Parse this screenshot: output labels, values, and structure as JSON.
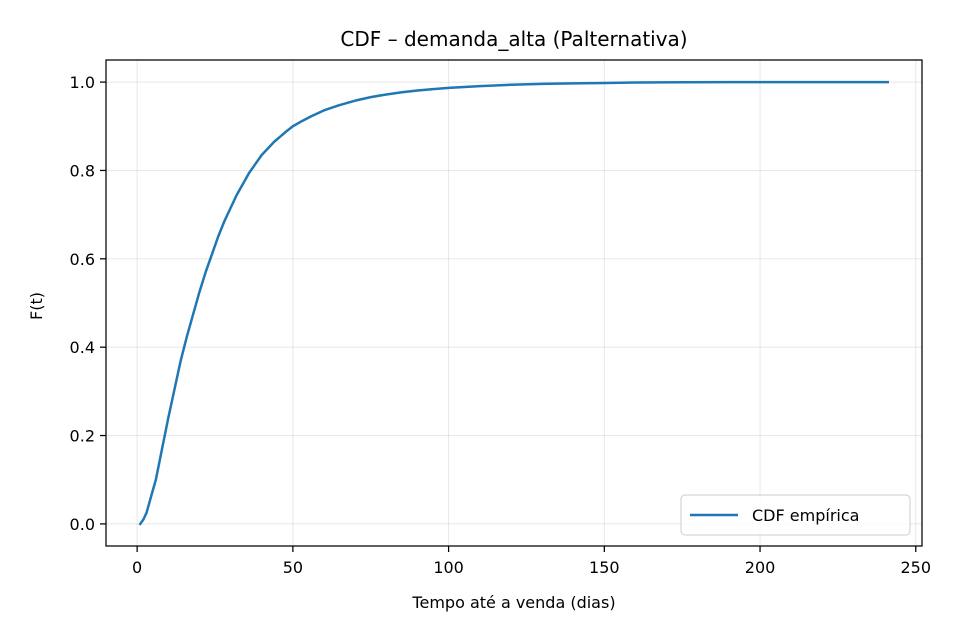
{
  "chart_data": {
    "type": "line",
    "title": "CDF – demanda_alta (Palternativa)",
    "xlabel": "Tempo até a venda (dias)",
    "ylabel": "F(t)",
    "xlim": [
      -10,
      252
    ],
    "ylim": [
      -0.05,
      1.05
    ],
    "xticks": [
      0,
      50,
      100,
      150,
      200,
      250
    ],
    "yticks": [
      0.0,
      0.2,
      0.4,
      0.6,
      0.8,
      1.0
    ],
    "grid": true,
    "legend_position": "lower-right",
    "series": [
      {
        "name": "CDF empírica",
        "color": "#1f77b4",
        "x": [
          1,
          2,
          3,
          4,
          5,
          6,
          7,
          8,
          9,
          10,
          12,
          14,
          16,
          18,
          20,
          22,
          24,
          26,
          28,
          30,
          32,
          34,
          36,
          38,
          40,
          42,
          44,
          46,
          48,
          50,
          53,
          56,
          60,
          65,
          70,
          75,
          80,
          85,
          90,
          95,
          100,
          110,
          120,
          130,
          140,
          150,
          160,
          175,
          190,
          210,
          225,
          241
        ],
        "y": [
          0.0,
          0.01,
          0.025,
          0.05,
          0.075,
          0.1,
          0.135,
          0.17,
          0.205,
          0.24,
          0.305,
          0.37,
          0.425,
          0.475,
          0.525,
          0.57,
          0.61,
          0.65,
          0.685,
          0.715,
          0.745,
          0.77,
          0.795,
          0.815,
          0.835,
          0.85,
          0.865,
          0.877,
          0.889,
          0.9,
          0.912,
          0.923,
          0.936,
          0.948,
          0.958,
          0.966,
          0.972,
          0.977,
          0.981,
          0.984,
          0.987,
          0.991,
          0.994,
          0.996,
          0.997,
          0.998,
          0.999,
          0.9995,
          1.0,
          1.0,
          1.0,
          1.0
        ]
      }
    ]
  }
}
